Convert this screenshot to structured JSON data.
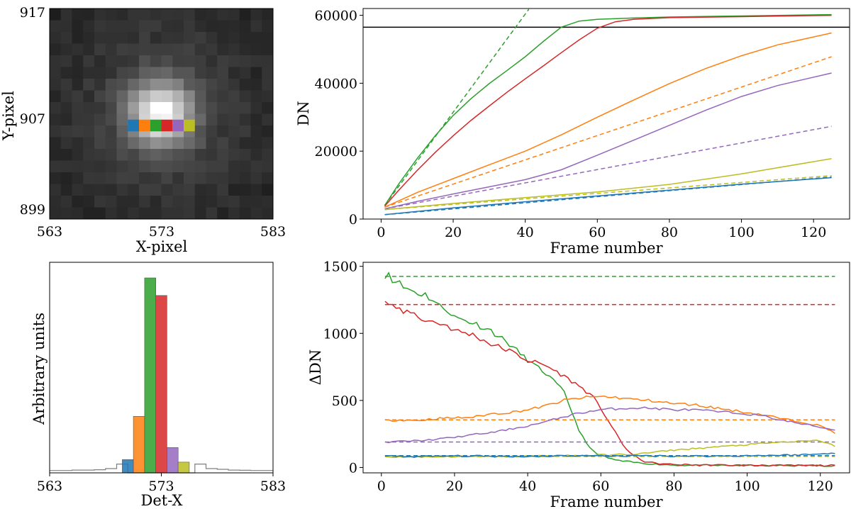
{
  "colors": {
    "blue": "#1f77b4",
    "orange": "#ff7f0e",
    "green": "#2ca02c",
    "red": "#d62728",
    "purple": "#9467bd",
    "olive": "#bcbd22",
    "black": "#000000",
    "gray": "#7f7f7f"
  },
  "chart_data": [
    {
      "id": "image",
      "type": "heatmap",
      "xlabel": "X-pixel",
      "ylabel": "Y-pixel",
      "xticks": [
        "563",
        "573",
        "583"
      ],
      "yticks": [
        "917",
        "907",
        "899"
      ],
      "xlim": [
        563,
        583
      ],
      "ylim": [
        899,
        917
      ],
      "colormap": "gray",
      "marked_pixels": {
        "y": 907,
        "x": [
          570,
          571,
          572,
          573,
          574,
          575
        ],
        "colors": [
          "#1f77b4",
          "#ff7f0e",
          "#2ca02c",
          "#d62728",
          "#9467bd",
          "#bcbd22"
        ]
      }
    },
    {
      "id": "ramps",
      "type": "line",
      "xlabel": "Frame number",
      "ylabel": "DN",
      "xlim": [
        -5,
        130
      ],
      "ylim": [
        0,
        62000
      ],
      "xticks": [
        "0",
        "20",
        "40",
        "60",
        "80",
        "100",
        "120"
      ],
      "yticks": [
        "0",
        "20000",
        "40000",
        "60000"
      ],
      "hline": 56500,
      "series": [
        {
          "color": "#1f77b4",
          "style": "solid",
          "x": [
            1,
            20,
            40,
            60,
            80,
            100,
            125
          ],
          "y": [
            1300,
            3300,
            5100,
            6800,
            8500,
            10300,
            12200
          ]
        },
        {
          "color": "#1f77b4",
          "style": "dashed",
          "x": [
            1,
            125
          ],
          "y": [
            1300,
            12400
          ]
        },
        {
          "color": "#ff7f0e",
          "style": "solid",
          "x": [
            1,
            10,
            20,
            30,
            40,
            50,
            60,
            70,
            80,
            90,
            100,
            110,
            125
          ],
          "y": [
            3500,
            7800,
            11900,
            16000,
            20000,
            24800,
            30000,
            35000,
            39900,
            44300,
            48100,
            51300,
            54800
          ]
        },
        {
          "color": "#ff7f0e",
          "style": "dashed",
          "x": [
            1,
            125
          ],
          "y": [
            3500,
            47800
          ]
        },
        {
          "color": "#2ca02c",
          "style": "solid",
          "x": [
            1,
            5,
            10,
            15,
            20,
            25,
            30,
            35,
            40,
            45,
            50,
            55,
            60,
            70,
            80,
            100,
            125
          ],
          "y": [
            4000,
            10500,
            17800,
            24500,
            30500,
            35500,
            39900,
            43800,
            47800,
            52300,
            56500,
            58300,
            58800,
            59200,
            59500,
            59800,
            60200
          ]
        },
        {
          "color": "#2ca02c",
          "style": "dashed",
          "x": [
            1,
            41
          ],
          "y": [
            4000,
            61800
          ]
        },
        {
          "color": "#d62728",
          "style": "solid",
          "x": [
            1,
            5,
            10,
            15,
            20,
            25,
            30,
            35,
            40,
            45,
            50,
            55,
            60,
            65,
            70,
            80,
            100,
            125
          ],
          "y": [
            3800,
            8600,
            14300,
            19600,
            24500,
            29100,
            33300,
            37400,
            41300,
            45100,
            49000,
            52800,
            56200,
            58100,
            58800,
            59300,
            59600,
            60000
          ]
        },
        {
          "color": "#9467bd",
          "style": "solid",
          "x": [
            1,
            10,
            20,
            30,
            40,
            50,
            60,
            70,
            80,
            90,
            100,
            110,
            125
          ],
          "y": [
            3000,
            5200,
            7400,
            9500,
            11600,
            14500,
            18800,
            23200,
            27600,
            32000,
            36100,
            39300,
            43000
          ]
        },
        {
          "color": "#9467bd",
          "style": "dashed",
          "x": [
            1,
            125
          ],
          "y": [
            3000,
            27300
          ]
        },
        {
          "color": "#bcbd22",
          "style": "solid",
          "x": [
            1,
            20,
            40,
            60,
            80,
            100,
            125
          ],
          "y": [
            2800,
            4600,
            6300,
            8000,
            10200,
            13300,
            17800
          ]
        },
        {
          "color": "#bcbd22",
          "style": "dashed",
          "x": [
            1,
            125
          ],
          "y": [
            2800,
            12800
          ]
        }
      ]
    },
    {
      "id": "profile",
      "type": "bar",
      "xlabel": "Det-X",
      "ylabel": "Arbitrary units",
      "xticks": [
        "563",
        "573",
        "583"
      ],
      "xlim": [
        563,
        583
      ],
      "ylim": [
        0,
        1.08
      ],
      "background_step_x": [
        563,
        564,
        565,
        566,
        567,
        568,
        569,
        570,
        571,
        572,
        573,
        574,
        575,
        576,
        577,
        578,
        579,
        580,
        581,
        582,
        583
      ],
      "background_step_y": [
        0.012,
        0.012,
        0.014,
        0.014,
        0.016,
        0.022,
        0.045,
        0.0,
        0.0,
        0.0,
        0.0,
        0.0,
        0.0,
        0.045,
        0.022,
        0.018,
        0.014,
        0.013,
        0.012,
        0.012
      ],
      "bars_x": [
        570,
        571,
        572,
        573,
        574,
        575
      ],
      "bars_y": [
        0.068,
        0.29,
        1.0,
        0.91,
        0.13,
        0.055
      ],
      "bar_colors": [
        "#1f77b4",
        "#ff7f0e",
        "#2ca02c",
        "#d62728",
        "#9467bd",
        "#bcbd22"
      ]
    },
    {
      "id": "diffs",
      "type": "line",
      "xlabel": "Frame number",
      "ylabel": "ΔDN",
      "xlim": [
        -5,
        128
      ],
      "ylim": [
        -40,
        1530
      ],
      "xticks": [
        "0",
        "20",
        "40",
        "60",
        "80",
        "100",
        "120"
      ],
      "yticks": [
        "0",
        "500",
        "1000",
        "1500"
      ],
      "series": [
        {
          "color": "#2ca02c",
          "style": "solid",
          "x": [
            1,
            2,
            3,
            4,
            5,
            6,
            8,
            10,
            12,
            14,
            16,
            18,
            20,
            25,
            30,
            35,
            40,
            45,
            48,
            50,
            52,
            54,
            56,
            58,
            60,
            62,
            65,
            70,
            75,
            80,
            85,
            90,
            100,
            110,
            124
          ],
          "y": [
            1440,
            1455,
            1390,
            1410,
            1370,
            1345,
            1325,
            1300,
            1290,
            1250,
            1200,
            1180,
            1120,
            1080,
            1020,
            920,
            800,
            700,
            620,
            560,
            420,
            280,
            180,
            120,
            90,
            70,
            50,
            35,
            25,
            18,
            16,
            15,
            15,
            14,
            14
          ]
        },
        {
          "color": "#2ca02c",
          "style": "dashed",
          "x": [
            1,
            124
          ],
          "y": [
            1425,
            1425
          ]
        },
        {
          "color": "#d62728",
          "style": "solid",
          "x": [
            1,
            2,
            3,
            4,
            6,
            8,
            10,
            12,
            15,
            18,
            20,
            25,
            30,
            35,
            40,
            45,
            50,
            55,
            58,
            60,
            62,
            64,
            66,
            68,
            70,
            72,
            75,
            80,
            90,
            100,
            110,
            124
          ],
          "y": [
            1250,
            1200,
            1225,
            1180,
            1150,
            1170,
            1120,
            1100,
            1080,
            1060,
            1020,
            990,
            920,
            870,
            800,
            760,
            680,
            590,
            520,
            440,
            350,
            260,
            170,
            110,
            70,
            45,
            30,
            22,
            18,
            16,
            15,
            15
          ]
        },
        {
          "color": "#d62728",
          "style": "dashed",
          "x": [
            1,
            124
          ],
          "y": [
            1215,
            1215
          ]
        },
        {
          "color": "#ff7f0e",
          "style": "solid",
          "x": [
            1,
            5,
            10,
            15,
            20,
            25,
            30,
            35,
            40,
            45,
            50,
            55,
            60,
            65,
            70,
            75,
            80,
            85,
            90,
            95,
            100,
            105,
            110,
            115,
            120,
            124
          ],
          "y": [
            350,
            355,
            350,
            365,
            370,
            375,
            400,
            410,
            430,
            460,
            500,
            520,
            530,
            520,
            505,
            495,
            475,
            470,
            450,
            430,
            410,
            390,
            360,
            340,
            310,
            260
          ]
        },
        {
          "color": "#ff7f0e",
          "style": "dashed",
          "x": [
            1,
            124
          ],
          "y": [
            355,
            355
          ]
        },
        {
          "color": "#9467bd",
          "style": "solid",
          "x": [
            1,
            5,
            10,
            15,
            20,
            25,
            30,
            35,
            40,
            45,
            50,
            55,
            60,
            65,
            70,
            75,
            80,
            85,
            90,
            95,
            100,
            105,
            110,
            115,
            120,
            124
          ],
          "y": [
            185,
            195,
            200,
            210,
            225,
            245,
            260,
            285,
            310,
            340,
            380,
            410,
            430,
            440,
            445,
            440,
            430,
            430,
            420,
            410,
            400,
            380,
            350,
            325,
            300,
            280
          ]
        },
        {
          "color": "#9467bd",
          "style": "dashed",
          "x": [
            1,
            124
          ],
          "y": [
            190,
            190
          ]
        },
        {
          "color": "#bcbd22",
          "style": "solid",
          "x": [
            1,
            10,
            20,
            30,
            40,
            50,
            60,
            70,
            75,
            80,
            85,
            90,
            95,
            100,
            105,
            110,
            115,
            120,
            124
          ],
          "y": [
            80,
            78,
            82,
            80,
            85,
            88,
            92,
            100,
            115,
            130,
            140,
            150,
            160,
            170,
            180,
            190,
            195,
            200,
            160
          ]
        },
        {
          "color": "#bcbd22",
          "style": "dashed",
          "x": [
            1,
            124
          ],
          "y": [
            82,
            82
          ]
        },
        {
          "color": "#1f77b4",
          "style": "solid",
          "x": [
            1,
            10,
            20,
            30,
            40,
            50,
            60,
            70,
            80,
            90,
            100,
            110,
            115,
            120,
            124
          ],
          "y": [
            85,
            82,
            86,
            84,
            82,
            88,
            85,
            87,
            86,
            85,
            88,
            92,
            95,
            100,
            110
          ]
        },
        {
          "color": "#1f77b4",
          "style": "dashed",
          "x": [
            1,
            124
          ],
          "y": [
            88,
            88
          ]
        }
      ]
    }
  ]
}
